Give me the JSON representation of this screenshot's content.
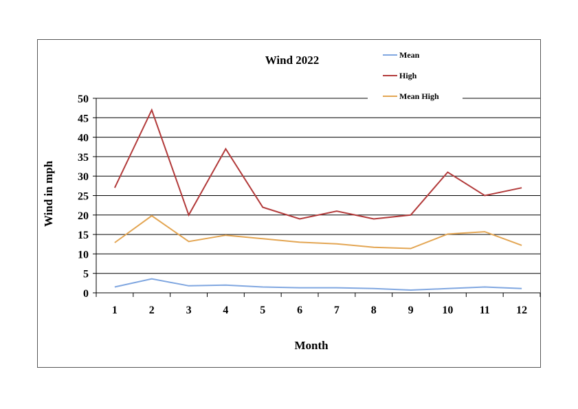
{
  "chart_data": {
    "type": "line",
    "title": "Wind 2022",
    "xlabel": "Month",
    "ylabel": "Wind in mph",
    "x": [
      1,
      2,
      3,
      4,
      5,
      6,
      7,
      8,
      9,
      10,
      11,
      12
    ],
    "x_tick_labels": [
      "1",
      "2",
      "3",
      "4",
      "5",
      "6",
      "7",
      "8",
      "9",
      "10",
      "11",
      "12"
    ],
    "ylim": [
      0,
      50
    ],
    "y_ticks": [
      0,
      5,
      10,
      15,
      20,
      25,
      30,
      35,
      40,
      45,
      50
    ],
    "y_tick_labels": [
      "0",
      "5",
      "10",
      "15",
      "20",
      "25",
      "30",
      "35",
      "40",
      "45",
      "50"
    ],
    "grid": "horizontal",
    "legend_position": "top-right",
    "series": [
      {
        "name": "Mean",
        "color": "#7fa6e0",
        "values": [
          1.5,
          3.6,
          1.8,
          2.0,
          1.5,
          1.3,
          1.3,
          1.1,
          0.7,
          1.1,
          1.5,
          1.1
        ]
      },
      {
        "name": "High",
        "color": "#b23a3a",
        "values": [
          27,
          47,
          20,
          37,
          22,
          19,
          21,
          19,
          20,
          31,
          25,
          27
        ]
      },
      {
        "name": "Mean High",
        "color": "#e3a552",
        "values": [
          12.9,
          19.8,
          13.2,
          14.8,
          13.9,
          13.0,
          12.6,
          11.7,
          11.4,
          15.1,
          15.7,
          12.2
        ]
      }
    ]
  }
}
